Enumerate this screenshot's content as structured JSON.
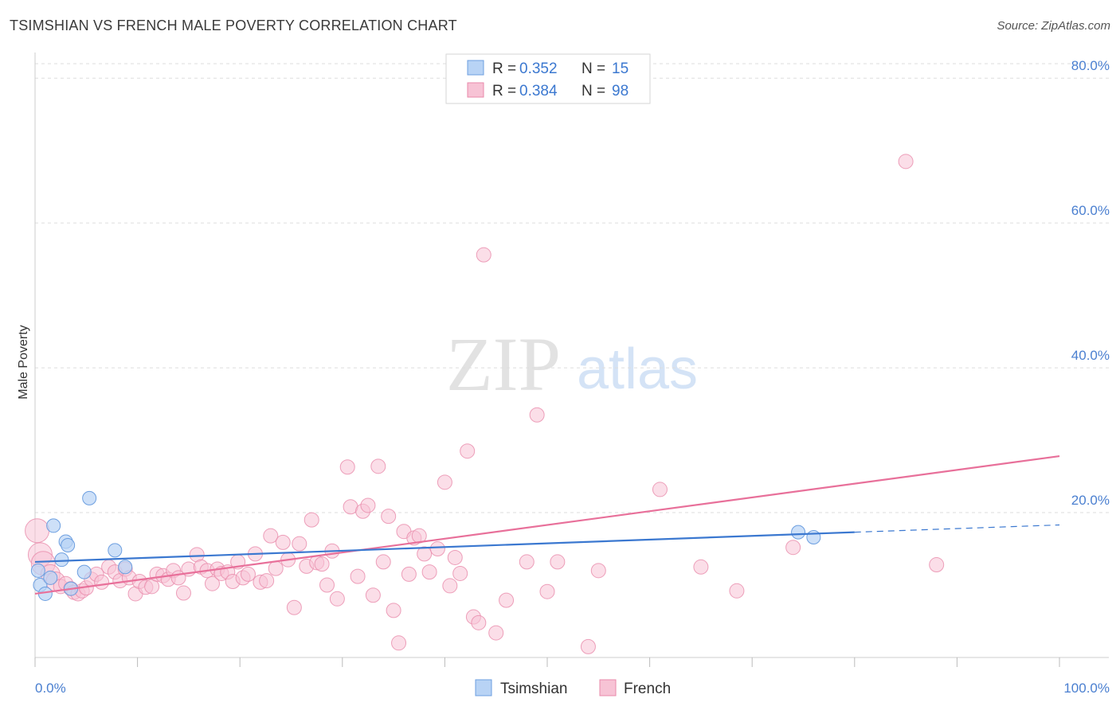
{
  "title": "TSIMSHIAN VS FRENCH MALE POVERTY CORRELATION CHART",
  "source": "Source: ZipAtlas.com",
  "watermark": {
    "zip": "ZIP",
    "atlas": "atlas"
  },
  "legend": {
    "rows": [
      {
        "r_label": "R =",
        "r_value": "0.352",
        "n_label": "N =",
        "n_value": "15"
      },
      {
        "r_label": "R =",
        "r_value": "0.384",
        "n_label": "N =",
        "n_value": "98"
      }
    ]
  },
  "bottom_legend": [
    "Tsimshian",
    "French"
  ],
  "colors": {
    "tsimshian_fill": "#b8d3f5",
    "tsimshian_stroke": "#6d9fe0",
    "tsimshian_line": "#3b78d0",
    "french_fill": "#f7c3d5",
    "french_stroke": "#e88aaa",
    "french_line": "#e8709a",
    "tick_label": "#4a7fd0",
    "grid": "#dddddd"
  },
  "chart_data": {
    "type": "scatter",
    "title": "TSIMSHIAN VS FRENCH MALE POVERTY CORRELATION CHART",
    "xlabel": "",
    "ylabel": "Male Poverty",
    "xlim": [
      0,
      100
    ],
    "ylim": [
      0,
      82
    ],
    "x_tick_labels": [
      "0.0%",
      "100.0%"
    ],
    "y_ticks": [
      20,
      40,
      60,
      80
    ],
    "y_tick_labels": [
      "20.0%",
      "40.0%",
      "60.0%",
      "80.0%"
    ],
    "grid": true,
    "legend_position": "top-center",
    "series": [
      {
        "name": "Tsimshian",
        "r": 0.352,
        "n": 15,
        "trend": {
          "x0": 0,
          "y0": 13.2,
          "x1": 80,
          "y1": 17.3,
          "dashed_to": 100,
          "dashed_y": 18.3
        },
        "points": [
          [
            0.3,
            12.0
          ],
          [
            0.5,
            10.0
          ],
          [
            1.0,
            8.8
          ],
          [
            1.5,
            11.0
          ],
          [
            1.8,
            18.2
          ],
          [
            2.6,
            13.5
          ],
          [
            3.0,
            16.0
          ],
          [
            3.2,
            15.5
          ],
          [
            3.5,
            9.5
          ],
          [
            4.8,
            11.8
          ],
          [
            5.3,
            22.0
          ],
          [
            7.8,
            14.8
          ],
          [
            8.8,
            12.5
          ],
          [
            74.5,
            17.3
          ],
          [
            76.0,
            16.6
          ]
        ]
      },
      {
        "name": "French",
        "r": 0.384,
        "n": 98,
        "trend": {
          "x0": 0,
          "y0": 8.8,
          "x1": 100,
          "y1": 27.8
        },
        "points": [
          [
            0.2,
            17.5
          ],
          [
            0.5,
            14.2
          ],
          [
            0.8,
            13.0
          ],
          [
            1.5,
            11.5
          ],
          [
            2.0,
            10.5
          ],
          [
            2.5,
            9.8
          ],
          [
            3.0,
            10.2
          ],
          [
            3.5,
            9.5
          ],
          [
            3.8,
            9.0
          ],
          [
            4.2,
            8.8
          ],
          [
            4.6,
            9.2
          ],
          [
            5.0,
            9.6
          ],
          [
            5.5,
            10.8
          ],
          [
            6.0,
            11.5
          ],
          [
            6.5,
            10.4
          ],
          [
            7.2,
            12.5
          ],
          [
            7.8,
            11.8
          ],
          [
            8.3,
            10.6
          ],
          [
            8.8,
            12.2
          ],
          [
            9.2,
            11.0
          ],
          [
            9.8,
            8.8
          ],
          [
            10.2,
            10.5
          ],
          [
            10.8,
            9.7
          ],
          [
            11.4,
            9.8
          ],
          [
            11.9,
            11.5
          ],
          [
            12.5,
            11.3
          ],
          [
            13.0,
            10.8
          ],
          [
            13.5,
            12.0
          ],
          [
            14.0,
            11.0
          ],
          [
            14.5,
            8.9
          ],
          [
            15.0,
            12.2
          ],
          [
            15.8,
            14.2
          ],
          [
            16.2,
            12.5
          ],
          [
            16.8,
            12.0
          ],
          [
            17.3,
            10.2
          ],
          [
            17.8,
            12.2
          ],
          [
            18.2,
            11.6
          ],
          [
            18.8,
            11.8
          ],
          [
            19.3,
            10.5
          ],
          [
            19.8,
            13.2
          ],
          [
            20.3,
            11.0
          ],
          [
            20.8,
            11.5
          ],
          [
            21.5,
            14.3
          ],
          [
            22.0,
            10.4
          ],
          [
            22.6,
            10.6
          ],
          [
            23.0,
            16.8
          ],
          [
            23.5,
            12.3
          ],
          [
            24.2,
            15.9
          ],
          [
            24.7,
            13.5
          ],
          [
            25.3,
            6.9
          ],
          [
            25.8,
            15.7
          ],
          [
            26.5,
            12.6
          ],
          [
            27.0,
            19.0
          ],
          [
            27.5,
            13.1
          ],
          [
            28.0,
            12.9
          ],
          [
            28.5,
            10.0
          ],
          [
            29.0,
            14.7
          ],
          [
            29.5,
            8.1
          ],
          [
            30.5,
            26.3
          ],
          [
            30.8,
            20.8
          ],
          [
            31.5,
            11.2
          ],
          [
            32.0,
            20.2
          ],
          [
            32.5,
            21.0
          ],
          [
            33.0,
            8.6
          ],
          [
            33.5,
            26.4
          ],
          [
            34.0,
            13.2
          ],
          [
            34.5,
            19.5
          ],
          [
            35.0,
            6.5
          ],
          [
            35.5,
            2.0
          ],
          [
            36.0,
            17.4
          ],
          [
            36.5,
            11.5
          ],
          [
            37.0,
            16.5
          ],
          [
            37.5,
            16.8
          ],
          [
            38.0,
            14.3
          ],
          [
            38.5,
            11.8
          ],
          [
            39.3,
            15.0
          ],
          [
            40.0,
            24.2
          ],
          [
            40.5,
            9.9
          ],
          [
            41.0,
            13.8
          ],
          [
            41.5,
            11.6
          ],
          [
            42.2,
            28.5
          ],
          [
            42.8,
            5.6
          ],
          [
            43.3,
            4.8
          ],
          [
            43.8,
            55.6
          ],
          [
            45.0,
            3.4
          ],
          [
            46.0,
            7.9
          ],
          [
            48.0,
            13.2
          ],
          [
            49.0,
            33.5
          ],
          [
            50.0,
            9.1
          ],
          [
            51.0,
            13.2
          ],
          [
            54.0,
            1.5
          ],
          [
            55.0,
            12.0
          ],
          [
            61.0,
            23.2
          ],
          [
            65.0,
            12.5
          ],
          [
            68.5,
            9.2
          ],
          [
            74.0,
            15.2
          ],
          [
            85.0,
            68.5
          ],
          [
            88.0,
            12.8
          ]
        ]
      }
    ]
  }
}
